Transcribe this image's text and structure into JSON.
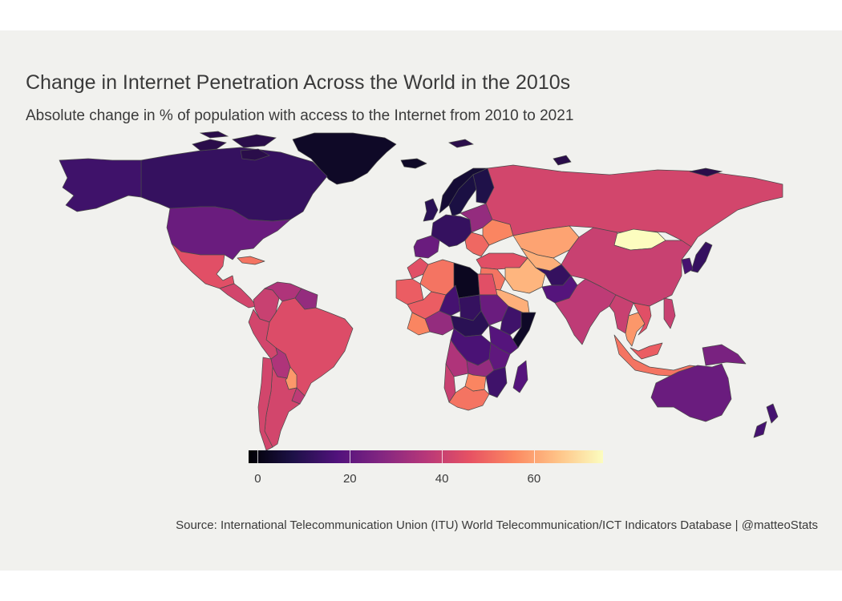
{
  "title": "Change in Internet Penetration Across the World in the 2010s",
  "subtitle": "Absolute change in % of population with access to the Internet from 2010 to 2021",
  "caption": "Source: International Telecommunication Union (ITU) World Telecommunication/ICT Indicators Database  | @matteoStats",
  "legend": {
    "min": -2,
    "max": 75,
    "ticks": [
      "0",
      "20",
      "40",
      "60"
    ],
    "tick_values": [
      0,
      20,
      40,
      60
    ],
    "palette": [
      "#000004",
      "#1d1147",
      "#51127c",
      "#832681",
      "#b73779",
      "#e75263",
      "#fc8961",
      "#fec488",
      "#fcfdbf"
    ]
  },
  "colors": {
    "background": "#f1f1ee",
    "ocean": "#f1f1ee",
    "border": "#4a4a4a"
  },
  "map_data": {
    "type": "choropleth",
    "projection": "equirectangular",
    "value_label": "Absolute change in % of population with access to the Internet",
    "regions": [
      {
        "name": "Greenland",
        "value": 3
      },
      {
        "name": "Canada",
        "value": 12
      },
      {
        "name": "Alaska",
        "value": 14
      },
      {
        "name": "United States",
        "value": 22
      },
      {
        "name": "Mexico",
        "value": 45
      },
      {
        "name": "Central America",
        "value": 42
      },
      {
        "name": "Cuba",
        "value": 52
      },
      {
        "name": "Colombia",
        "value": 40
      },
      {
        "name": "Venezuela",
        "value": 35
      },
      {
        "name": "Guyana",
        "value": 30
      },
      {
        "name": "Brazil",
        "value": 44
      },
      {
        "name": "Peru",
        "value": 42
      },
      {
        "name": "Bolivia",
        "value": 35
      },
      {
        "name": "Paraguay",
        "value": 58
      },
      {
        "name": "Argentina",
        "value": 42
      },
      {
        "name": "Chile",
        "value": 42
      },
      {
        "name": "Uruguay",
        "value": 38
      },
      {
        "name": "Iceland",
        "value": 3
      },
      {
        "name": "Norway",
        "value": 5
      },
      {
        "name": "Sweden",
        "value": 7
      },
      {
        "name": "Finland",
        "value": 8
      },
      {
        "name": "United Kingdom",
        "value": 10
      },
      {
        "name": "Western Europe",
        "value": 12
      },
      {
        "name": "Iberia",
        "value": 22
      },
      {
        "name": "Eastern Europe",
        "value": 30
      },
      {
        "name": "Balkans",
        "value": 50
      },
      {
        "name": "Ukraine",
        "value": 55
      },
      {
        "name": "Russia",
        "value": 42
      },
      {
        "name": "Turkey",
        "value": 45
      },
      {
        "name": "Kazakhstan",
        "value": 60
      },
      {
        "name": "Central Asia",
        "value": 62
      },
      {
        "name": "Mongolia",
        "value": 75
      },
      {
        "name": "China",
        "value": 40
      },
      {
        "name": "Japan",
        "value": 12
      },
      {
        "name": "Korea",
        "value": 15
      },
      {
        "name": "Iran",
        "value": 63
      },
      {
        "name": "Saudi Arabia",
        "value": 62
      },
      {
        "name": "Middle East",
        "value": 52
      },
      {
        "name": "Afghanistan",
        "value": 12
      },
      {
        "name": "Pakistan",
        "value": 18
      },
      {
        "name": "India",
        "value": 38
      },
      {
        "name": "Myanmar",
        "value": 40
      },
      {
        "name": "Thailand",
        "value": 58
      },
      {
        "name": "Vietnam",
        "value": 45
      },
      {
        "name": "Philippines",
        "value": 40
      },
      {
        "name": "Malaysia",
        "value": 48
      },
      {
        "name": "Indonesia",
        "value": 52
      },
      {
        "name": "Papua New Guinea",
        "value": 25
      },
      {
        "name": "Australia",
        "value": 22
      },
      {
        "name": "New Zealand",
        "value": 15
      },
      {
        "name": "Morocco",
        "value": 45
      },
      {
        "name": "Algeria",
        "value": 52
      },
      {
        "name": "Libya",
        "value": 2
      },
      {
        "name": "Egypt",
        "value": 45
      },
      {
        "name": "Mauritania",
        "value": 48
      },
      {
        "name": "Mali",
        "value": 48
      },
      {
        "name": "Niger",
        "value": 15
      },
      {
        "name": "Chad",
        "value": 12
      },
      {
        "name": "Sudan",
        "value": 22
      },
      {
        "name": "Ethiopia",
        "value": 14
      },
      {
        "name": "Somalia",
        "value": 3
      },
      {
        "name": "Nigeria",
        "value": 30
      },
      {
        "name": "Ghana",
        "value": 55
      },
      {
        "name": "Central Africa",
        "value": 10
      },
      {
        "name": "DR Congo",
        "value": 16
      },
      {
        "name": "Kenya",
        "value": 18
      },
      {
        "name": "Tanzania",
        "value": 20
      },
      {
        "name": "Angola",
        "value": 35
      },
      {
        "name": "Zambia",
        "value": 30
      },
      {
        "name": "Mozambique",
        "value": 14
      },
      {
        "name": "Madagascar",
        "value": 18
      },
      {
        "name": "Namibia",
        "value": 40
      },
      {
        "name": "South Africa",
        "value": 52
      },
      {
        "name": "Botswana",
        "value": 55
      }
    ]
  }
}
